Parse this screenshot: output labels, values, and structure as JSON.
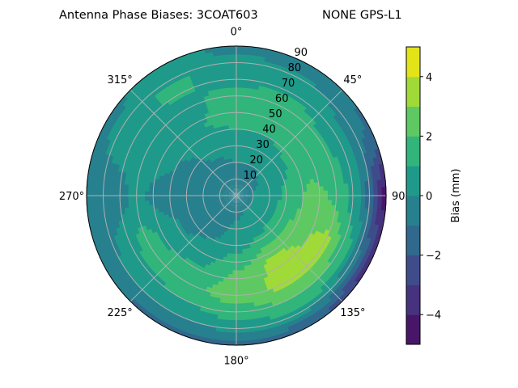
{
  "chart_data": {
    "type": "polar-contour",
    "title_left": "Antenna Phase Biases: 3COAT603",
    "title_right": "NONE GPS-L1",
    "angle_direction": "clockwise",
    "zero_location": "top",
    "angle_tick_labels": [
      "0°",
      "45°",
      "90°",
      "135°",
      "180°",
      "225°",
      "270°",
      "315°"
    ],
    "radial_ticks": [
      10,
      20,
      30,
      40,
      50,
      60,
      70,
      80,
      90
    ],
    "radial_tick_labels": [
      "10",
      "20",
      "30",
      "40",
      "50",
      "60",
      "70",
      "80",
      "90"
    ],
    "rlim": [
      0,
      90
    ],
    "grid": true,
    "colorbar": {
      "label": "Bias (mm)",
      "levels": [
        -5,
        -4,
        -3,
        -2,
        -1,
        0,
        1,
        2,
        3,
        4,
        5
      ],
      "ticks": [
        -4,
        -2,
        0,
        2,
        4
      ],
      "tick_labels": [
        "−4",
        "−2",
        "0",
        "2",
        "4"
      ],
      "colormap": "viridis",
      "colors": [
        "#481668",
        "#46327e",
        "#3e4c8a",
        "#30688e",
        "#27808e",
        "#1f9a8a",
        "#31b57b",
        "#5ec962",
        "#a0da39",
        "#e2e418"
      ]
    },
    "azimuth": [
      0,
      30,
      60,
      90,
      120,
      150,
      180,
      210,
      240,
      270,
      300,
      330
    ],
    "zenith": [
      0,
      15,
      30,
      45,
      60,
      75,
      90
    ],
    "values": [
      [
        -0.5,
        -0.3,
        0.5,
        1.2,
        1.3,
        0.5,
        -0.3
      ],
      [
        -0.5,
        -0.3,
        0.5,
        1.3,
        1.5,
        0.5,
        -0.5
      ],
      [
        -0.5,
        0.0,
        0.8,
        1.5,
        1.2,
        0.0,
        -1.2
      ],
      [
        -0.5,
        0.3,
        1.2,
        2.3,
        1.8,
        0.0,
        -4.5
      ],
      [
        -0.5,
        0.3,
        1.5,
        2.8,
        3.3,
        1.0,
        -3.5
      ],
      [
        -0.5,
        0.2,
        1.2,
        3.3,
        3.3,
        1.5,
        -2.0
      ],
      [
        -0.5,
        0.0,
        0.5,
        2.0,
        2.5,
        1.0,
        -1.2
      ],
      [
        -0.5,
        -0.3,
        0.0,
        0.8,
        1.8,
        0.5,
        -1.5
      ],
      [
        -0.5,
        -0.5,
        -0.5,
        0.5,
        1.5,
        0.3,
        -0.8
      ],
      [
        -0.5,
        -0.5,
        -0.5,
        -0.3,
        0.2,
        -0.5,
        -0.3
      ],
      [
        -0.5,
        -0.5,
        -0.3,
        0.2,
        0.5,
        0.5,
        -0.3
      ],
      [
        -0.5,
        -0.5,
        0.2,
        1.0,
        0.8,
        1.2,
        0.3
      ]
    ]
  }
}
